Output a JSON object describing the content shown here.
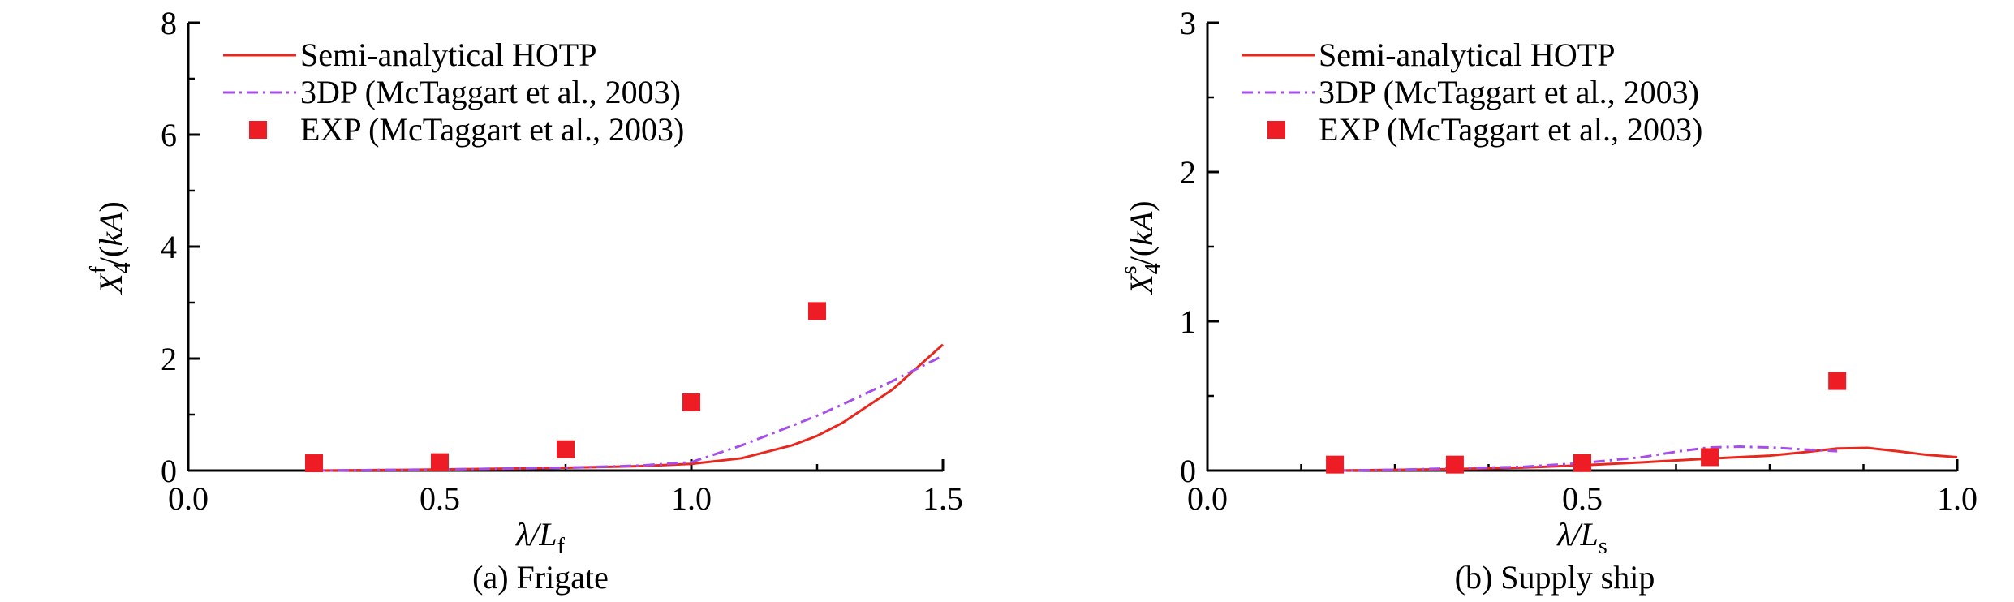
{
  "chart_data": [
    {
      "type": "line",
      "caption": "(a) Frigate",
      "xlabel": {
        "main": "λ/",
        "italic": "L",
        "sub": "f"
      },
      "ylabel": {
        "italic": "X",
        "sub": "4",
        "sup": "f",
        "rest": "/(",
        "italic2": "kA",
        "close": ")"
      },
      "xlim": [
        0.0,
        1.5
      ],
      "ylim": [
        0,
        8
      ],
      "xticks": [
        0.0,
        0.5,
        1.0,
        1.5
      ],
      "xtick_labels": [
        "0.0",
        "0.5",
        "1.0",
        "1.5"
      ],
      "yticks": [
        0,
        2,
        4,
        6,
        8
      ],
      "ytick_labels": [
        "0",
        "2",
        "4",
        "6",
        "8"
      ],
      "grid": false,
      "legend_placement": "top-left",
      "series": [
        {
          "name": "Semi-analytical HOTP",
          "style": "solid",
          "color": "#e8281e",
          "x": [
            0.25,
            0.4,
            0.5,
            0.6,
            0.75,
            0.9,
            1.0,
            1.1,
            1.2,
            1.25,
            1.3,
            1.4,
            1.5
          ],
          "y": [
            0.0,
            0.01,
            0.02,
            0.03,
            0.05,
            0.08,
            0.12,
            0.22,
            0.45,
            0.62,
            0.85,
            1.45,
            2.25
          ]
        },
        {
          "name": "3DP (McTaggart et al., 2003)",
          "style": "dashdot",
          "color": "#a64ee8",
          "x": [
            0.25,
            0.5,
            0.75,
            0.9,
            1.0,
            1.1,
            1.2,
            1.25,
            1.3,
            1.4,
            1.5
          ],
          "y": [
            0.0,
            0.02,
            0.05,
            0.09,
            0.15,
            0.45,
            0.8,
            0.98,
            1.18,
            1.6,
            2.05
          ]
        },
        {
          "name": "EXP (McTaggart et al., 2003)",
          "style": "marker",
          "color": "#ee1c24",
          "x": [
            0.25,
            0.5,
            0.75,
            1.0,
            1.25
          ],
          "y": [
            0.13,
            0.15,
            0.38,
            1.22,
            2.85
          ]
        }
      ]
    },
    {
      "type": "line",
      "caption": "(b) Supply ship",
      "xlabel": {
        "main": "λ/",
        "italic": "L",
        "sub": "s"
      },
      "ylabel": {
        "italic": "X",
        "sub": "4",
        "sup": "s",
        "rest": "/(",
        "italic2": "kA",
        "close": ")"
      },
      "xlim": [
        0.0,
        1.0
      ],
      "ylim": [
        0,
        3
      ],
      "xticks": [
        0.0,
        0.5,
        1.0
      ],
      "xtick_labels": [
        "0.0",
        "0.5",
        "1.0"
      ],
      "yticks": [
        0,
        1,
        2,
        3
      ],
      "ytick_labels": [
        "0",
        "1",
        "2",
        "3"
      ],
      "grid": false,
      "legend_placement": "top-left",
      "series": [
        {
          "name": "Semi-analytical HOTP",
          "style": "solid",
          "color": "#e8281e",
          "x": [
            0.17,
            0.25,
            0.33,
            0.42,
            0.5,
            0.58,
            0.67,
            0.75,
            0.8,
            0.84,
            0.88,
            0.92,
            0.96,
            1.0
          ],
          "y": [
            0.0,
            0.005,
            0.01,
            0.02,
            0.035,
            0.055,
            0.08,
            0.1,
            0.125,
            0.148,
            0.152,
            0.13,
            0.105,
            0.09
          ]
        },
        {
          "name": "3DP (McTaggart et al., 2003)",
          "style": "dashdot",
          "color": "#a64ee8",
          "x": [
            0.17,
            0.25,
            0.33,
            0.42,
            0.5,
            0.58,
            0.63,
            0.67,
            0.71,
            0.75,
            0.8,
            0.84
          ],
          "y": [
            0.0,
            0.005,
            0.015,
            0.025,
            0.05,
            0.09,
            0.13,
            0.155,
            0.16,
            0.155,
            0.14,
            0.13
          ]
        },
        {
          "name": "EXP (McTaggart et al., 2003)",
          "style": "marker",
          "color": "#ee1c24",
          "x": [
            0.17,
            0.33,
            0.5,
            0.67,
            0.84
          ],
          "y": [
            0.04,
            0.04,
            0.05,
            0.09,
            0.6
          ]
        }
      ]
    }
  ]
}
